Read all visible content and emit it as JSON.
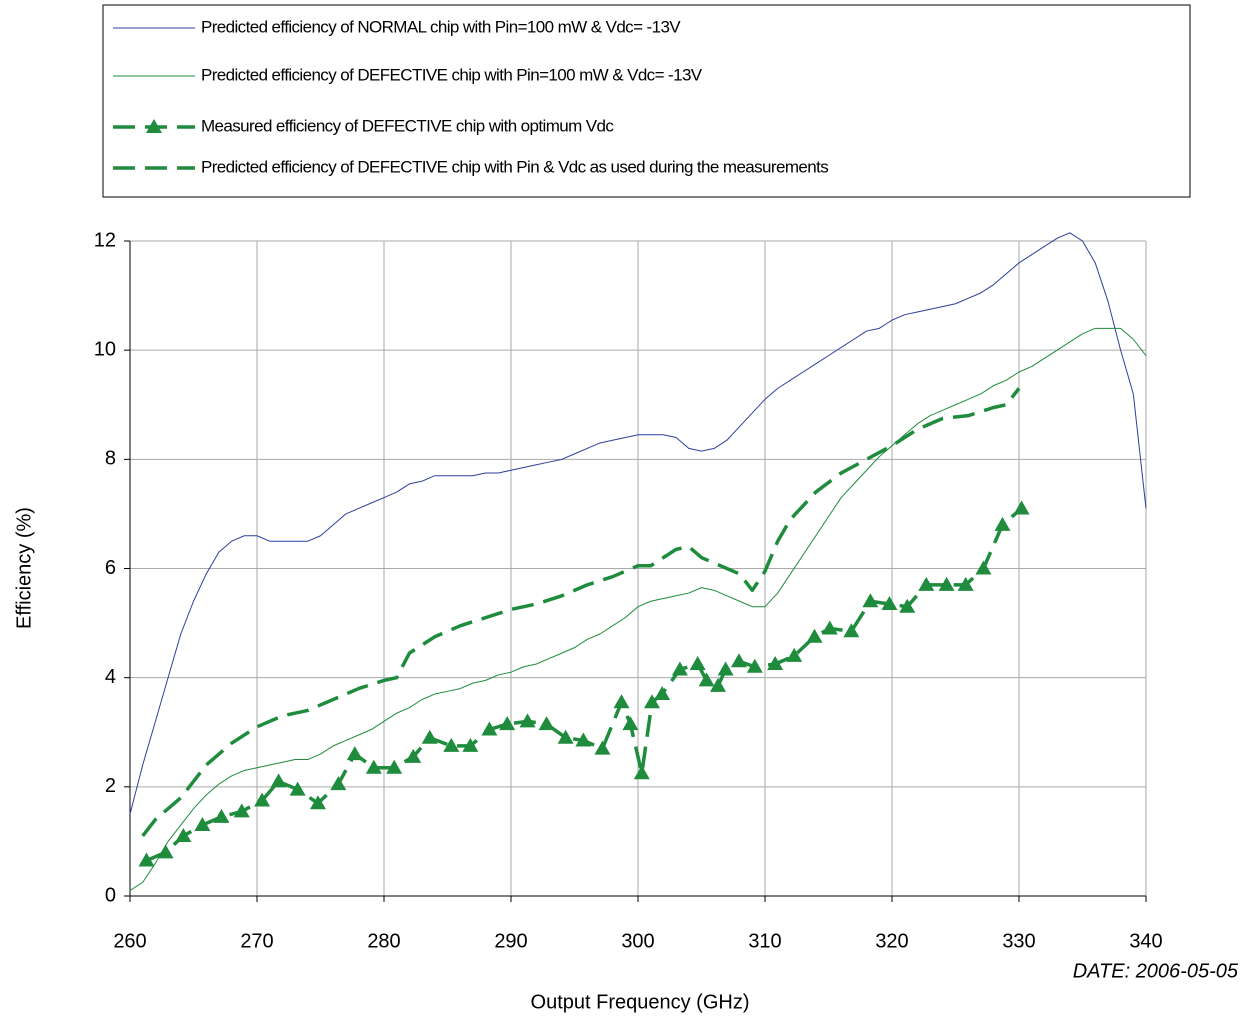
{
  "chart_data": {
    "type": "line",
    "xlabel": "Output Frequency (GHz)",
    "ylabel": "Efficiency  (%)",
    "annotation": "DATE: 2006-05-05",
    "xlim": [
      260,
      340
    ],
    "xticks": [
      260,
      270,
      280,
      290,
      300,
      310,
      320,
      330,
      340
    ],
    "ylim": [
      0,
      12
    ],
    "yticks": [
      0,
      2,
      4,
      6,
      8,
      10,
      12
    ],
    "grid": true,
    "legend": "top",
    "series": [
      {
        "name": "Predicted efficiency of NORMAL chip with Pin=100 mW & Vdc= -13V",
        "color": "#2f3f9c",
        "width": 1,
        "dash": false,
        "marker": "none",
        "x": [
          260,
          261,
          262,
          263,
          264,
          265,
          266,
          267,
          268,
          269,
          270,
          271,
          272,
          273,
          274,
          275,
          276,
          277,
          278,
          279,
          280,
          281,
          282,
          283,
          284,
          285,
          286,
          287,
          288,
          289,
          290,
          291,
          292,
          293,
          294,
          295,
          296,
          297,
          298,
          299,
          300,
          301,
          302,
          303,
          304,
          305,
          306,
          307,
          308,
          309,
          310,
          311,
          312,
          313,
          314,
          315,
          316,
          317,
          318,
          319,
          320,
          321,
          322,
          323,
          324,
          325,
          326,
          327,
          328,
          329,
          330,
          331,
          332,
          333,
          334,
          335,
          336,
          337,
          338,
          339,
          340
        ],
        "values": [
          1.5,
          2.4,
          3.2,
          4.0,
          4.8,
          5.4,
          5.9,
          6.3,
          6.5,
          6.6,
          6.6,
          6.5,
          6.5,
          6.5,
          6.5,
          6.6,
          6.8,
          7.0,
          7.1,
          7.2,
          7.3,
          7.4,
          7.55,
          7.6,
          7.7,
          7.7,
          7.7,
          7.7,
          7.75,
          7.75,
          7.8,
          7.85,
          7.9,
          7.95,
          8.0,
          8.1,
          8.2,
          8.3,
          8.35,
          8.4,
          8.45,
          8.45,
          8.45,
          8.4,
          8.2,
          8.15,
          8.2,
          8.35,
          8.6,
          8.85,
          9.1,
          9.3,
          9.45,
          9.6,
          9.75,
          9.9,
          10.05,
          10.2,
          10.35,
          10.4,
          10.55,
          10.65,
          10.7,
          10.75,
          10.8,
          10.85,
          10.95,
          11.05,
          11.2,
          11.4,
          11.6,
          11.75,
          11.9,
          12.05,
          12.15,
          12.0,
          11.6,
          10.9,
          10.0,
          9.2,
          7.1
        ]
      },
      {
        "name": "Predicted efficiency of DEFECTIVE chip with Pin=100 mW & Vdc= -13V",
        "color": "#1e8c3c",
        "width": 1,
        "dash": false,
        "marker": "none",
        "x": [
          260,
          261,
          262,
          263,
          264,
          265,
          266,
          267,
          268,
          269,
          270,
          271,
          272,
          273,
          274,
          275,
          276,
          277,
          278,
          279,
          280,
          281,
          282,
          283,
          284,
          285,
          286,
          287,
          288,
          289,
          290,
          291,
          292,
          293,
          294,
          295,
          296,
          297,
          298,
          299,
          300,
          301,
          302,
          303,
          304,
          305,
          306,
          307,
          308,
          309,
          310,
          311,
          312,
          313,
          314,
          315,
          316,
          317,
          318,
          319,
          320,
          321,
          322,
          323,
          324,
          325,
          326,
          327,
          328,
          329,
          330,
          331,
          332,
          333,
          334,
          335,
          336,
          337,
          338,
          339,
          340
        ],
        "values": [
          0.1,
          0.25,
          0.6,
          1.0,
          1.3,
          1.6,
          1.85,
          2.05,
          2.2,
          2.3,
          2.35,
          2.4,
          2.45,
          2.5,
          2.5,
          2.6,
          2.75,
          2.85,
          2.95,
          3.05,
          3.2,
          3.35,
          3.45,
          3.6,
          3.7,
          3.75,
          3.8,
          3.9,
          3.95,
          4.05,
          4.1,
          4.2,
          4.25,
          4.35,
          4.45,
          4.55,
          4.7,
          4.8,
          4.95,
          5.1,
          5.3,
          5.4,
          5.45,
          5.5,
          5.55,
          5.65,
          5.6,
          5.5,
          5.4,
          5.3,
          5.3,
          5.55,
          5.9,
          6.25,
          6.6,
          6.95,
          7.3,
          7.55,
          7.8,
          8.05,
          8.25,
          8.45,
          8.65,
          8.8,
          8.9,
          9.0,
          9.1,
          9.2,
          9.35,
          9.45,
          9.6,
          9.7,
          9.85,
          10.0,
          10.15,
          10.3,
          10.4,
          10.4,
          10.4,
          10.2,
          9.9
        ]
      },
      {
        "name": "Measured efficiency of DEFECTIVE chip with optimum Vdc",
        "color": "#1e8c3c",
        "width": 3.5,
        "dash": true,
        "marker": "triangle",
        "x": [
          261.3,
          262.8,
          264.2,
          265.7,
          267.2,
          268.8,
          270.4,
          271.7,
          273.2,
          274.8,
          276.4,
          277.7,
          279.2,
          280.8,
          282.3,
          283.6,
          285.3,
          286.8,
          288.3,
          289.7,
          291.3,
          292.8,
          294.3,
          295.7,
          297.2,
          298.7,
          299.4,
          300.3,
          301.1,
          301.9,
          303.3,
          304.7,
          305.4,
          306.3,
          306.9,
          307.95,
          309.2,
          310.8,
          312.3,
          313.9,
          315.1,
          316.8,
          318.3,
          319.8,
          321.2,
          322.7,
          324.3,
          325.8,
          327.2,
          328.7,
          330.2
        ],
        "values": [
          0.65,
          0.8,
          1.1,
          1.3,
          1.45,
          1.55,
          1.75,
          2.1,
          1.95,
          1.7,
          2.05,
          2.6,
          2.35,
          2.35,
          2.55,
          2.9,
          2.75,
          2.75,
          3.05,
          3.15,
          3.2,
          3.15,
          2.9,
          2.85,
          2.7,
          3.55,
          3.15,
          2.25,
          3.55,
          3.7,
          4.15,
          4.25,
          3.95,
          3.85,
          4.15,
          4.3,
          4.2,
          4.25,
          4.4,
          4.75,
          4.9,
          4.85,
          5.4,
          5.35,
          5.3,
          5.7,
          5.7,
          5.7,
          6.0,
          6.8,
          7.1
        ]
      },
      {
        "name": "Predicted efficiency of DEFECTIVE chip with Pin & Vdc as used during the measurements",
        "color": "#1e8c3c",
        "width": 3.5,
        "dash": true,
        "marker": "none",
        "x": [
          261,
          262,
          264,
          266,
          268,
          270,
          272,
          274,
          276,
          278,
          280,
          281,
          282,
          284,
          286,
          288,
          290,
          292,
          294,
          296,
          298,
          300,
          301,
          302,
          303,
          304,
          305,
          306,
          307,
          308,
          309,
          310,
          311,
          312,
          314,
          316,
          318,
          320,
          322,
          324,
          326,
          328,
          329,
          330
        ],
        "values": [
          1.1,
          1.4,
          1.8,
          2.4,
          2.8,
          3.1,
          3.3,
          3.4,
          3.6,
          3.8,
          3.95,
          4.0,
          4.45,
          4.75,
          4.95,
          5.1,
          5.25,
          5.35,
          5.5,
          5.7,
          5.85,
          6.05,
          6.05,
          6.2,
          6.35,
          6.4,
          6.2,
          6.1,
          6.0,
          5.9,
          5.6,
          5.95,
          6.5,
          6.9,
          7.4,
          7.75,
          8.0,
          8.25,
          8.55,
          8.75,
          8.8,
          8.95,
          9.0,
          9.3
        ]
      }
    ]
  }
}
